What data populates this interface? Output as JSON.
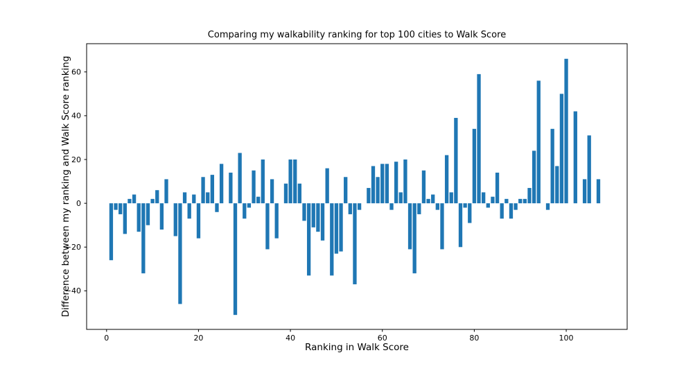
{
  "figure": {
    "title": "Comparing my walkability ranking for top 100 cities to Walk Score",
    "xlabel": "Ranking in Walk Score",
    "ylabel": "Difference between my ranking and Walk Score ranking"
  },
  "chart_data": {
    "type": "bar",
    "title": "Comparing my walkability ranking for top 100 cities to Walk Score",
    "xlabel": "Ranking in Walk Score",
    "ylabel": "Difference between my ranking and Walk Score ranking",
    "bar_color": "#1f77b4",
    "background_color": "#ffffff",
    "spine_color": "#000000",
    "grid": false,
    "legend": "none",
    "xlim": [
      -4.34,
      113.26
    ],
    "ylim": [
      -57.6,
      72.9
    ],
    "x_ticks": [
      0,
      20,
      40,
      60,
      80,
      100
    ],
    "y_ticks": [
      -40,
      -20,
      0,
      20,
      40,
      60
    ],
    "x": [
      1,
      2,
      3,
      4,
      5,
      6,
      7,
      8,
      9,
      10,
      11,
      12,
      13,
      14,
      15,
      16,
      17,
      18,
      19,
      20,
      21,
      22,
      23,
      24,
      25,
      26,
      27,
      28,
      29,
      30,
      31,
      32,
      33,
      34,
      35,
      36,
      37,
      38,
      39,
      40,
      41,
      42,
      43,
      44,
      45,
      46,
      47,
      48,
      49,
      50,
      51,
      52,
      53,
      54,
      55,
      56,
      57,
      58,
      59,
      60,
      61,
      62,
      63,
      64,
      65,
      66,
      67,
      68,
      69,
      70,
      71,
      72,
      73,
      74,
      75,
      76,
      77,
      78,
      79,
      80,
      81,
      82,
      83,
      84,
      85,
      86,
      87,
      88,
      89,
      90,
      91,
      92,
      93,
      94,
      95,
      96,
      97,
      98,
      99,
      100,
      101,
      102,
      103,
      104,
      105,
      106,
      107
    ],
    "values": [
      -26,
      -3,
      -5,
      -14,
      2,
      4,
      -13,
      -32,
      -10,
      2,
      6,
      -12,
      11,
      0,
      -15,
      -46,
      5,
      -7,
      4,
      -16,
      12,
      5,
      13,
      -4,
      18,
      0,
      14,
      -51,
      23,
      -7,
      -2,
      15,
      3,
      20,
      -21,
      11,
      -16,
      0,
      9,
      20,
      20,
      9,
      -8,
      -33,
      -11,
      -13,
      -17,
      16,
      -33,
      -23,
      -22,
      12,
      -5,
      -37,
      -3,
      0,
      7,
      17,
      12,
      18,
      18,
      -3,
      19,
      5,
      20,
      -21,
      -32,
      -5,
      15,
      2,
      4,
      -3,
      -21,
      22,
      5,
      39,
      -20,
      -2,
      -9,
      34,
      59,
      5,
      -2,
      3,
      14,
      -7,
      2,
      -7,
      -3,
      2,
      2,
      7,
      24,
      56,
      0,
      -3,
      34,
      17,
      50,
      66,
      0,
      42,
      0,
      11,
      31,
      0,
      11
    ]
  }
}
